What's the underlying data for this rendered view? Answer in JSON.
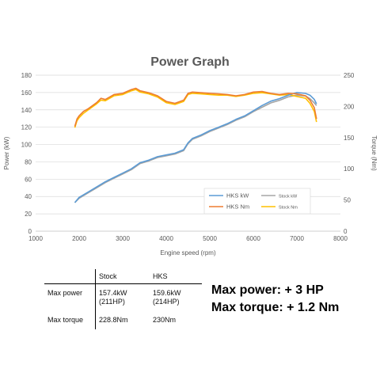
{
  "chart_data": {
    "type": "line",
    "title": "Power Graph",
    "xlabel": "Engine speed (rpm)",
    "ylabel_left": "Power (kW)",
    "ylabel_right": "Torque (Nm)",
    "xlim": [
      1000,
      8000
    ],
    "ylim_left": [
      0,
      180
    ],
    "ylim_right": [
      0,
      250
    ],
    "x_ticks": [
      "1000",
      "2000",
      "3000",
      "4000",
      "5000",
      "6000",
      "7000",
      "8000"
    ],
    "y_left_ticks": [
      "0",
      "20",
      "40",
      "60",
      "80",
      "100",
      "120",
      "140",
      "160",
      "180"
    ],
    "y_right_ticks": [
      "0",
      "50",
      "100",
      "150",
      "200",
      "250"
    ],
    "grid": "horizontal",
    "legend": [
      {
        "name": "HKS kW",
        "color": "#5b9bd5"
      },
      {
        "name": "Stock kW",
        "color": "#a5a5a5"
      },
      {
        "name": "HKS Nm",
        "color": "#ed7d31"
      },
      {
        "name": "Stock Nm",
        "color": "#ffc000"
      }
    ],
    "legend_position": "lower-right",
    "series": [
      {
        "name": "HKS kW",
        "axis": "left",
        "color": "#5b9bd5",
        "x": [
          1900,
          2000,
          2200,
          2400,
          2600,
          2800,
          3000,
          3200,
          3400,
          3600,
          3800,
          4000,
          4200,
          4400,
          4500,
          4600,
          4800,
          5000,
          5200,
          5400,
          5600,
          5800,
          6000,
          6200,
          6400,
          6600,
          6800,
          7000,
          7200,
          7300,
          7400,
          7450
        ],
        "y": [
          33,
          39,
          45,
          51,
          57,
          62,
          67,
          72,
          79,
          82,
          86,
          88,
          90,
          94,
          102,
          107,
          111,
          116,
          120,
          124,
          129,
          133,
          139,
          145,
          150,
          153,
          157,
          160,
          159,
          157,
          152,
          147
        ]
      },
      {
        "name": "Stock kW",
        "axis": "left",
        "color": "#a5a5a5",
        "x": [
          1900,
          2000,
          2200,
          2400,
          2600,
          2800,
          3000,
          3200,
          3400,
          3600,
          3800,
          4000,
          4200,
          4400,
          4500,
          4600,
          4800,
          5000,
          5200,
          5400,
          5600,
          5800,
          6000,
          6200,
          6400,
          6600,
          6800,
          7000,
          7200,
          7300,
          7400,
          7450
        ],
        "y": [
          33,
          38,
          44,
          50,
          56,
          61,
          66,
          71,
          78,
          81,
          85,
          87,
          89,
          93,
          101,
          106,
          110,
          115,
          119,
          123,
          128,
          132,
          138,
          143,
          148,
          151,
          155,
          157,
          156,
          153,
          148,
          145
        ]
      },
      {
        "name": "HKS Nm",
        "axis": "right",
        "color": "#ed7d31",
        "x": [
          1900,
          1950,
          2000,
          2100,
          2200,
          2400,
          2500,
          2600,
          2800,
          3000,
          3200,
          3300,
          3400,
          3600,
          3800,
          4000,
          4200,
          4400,
          4500,
          4600,
          4800,
          5000,
          5200,
          5400,
          5600,
          5800,
          6000,
          6200,
          6400,
          6600,
          6800,
          7000,
          7200,
          7300,
          7400,
          7450
        ],
        "y": [
          168,
          180,
          185,
          192,
          196,
          206,
          213,
          211,
          219,
          221,
          227,
          229,
          225,
          222,
          217,
          208,
          205,
          210,
          221,
          223,
          222,
          221,
          220,
          219,
          217,
          219,
          223,
          224,
          221,
          219,
          221,
          220,
          217,
          210,
          198,
          180
        ]
      },
      {
        "name": "Stock Nm",
        "axis": "right",
        "color": "#ffc000",
        "x": [
          1900,
          1950,
          2000,
          2100,
          2200,
          2400,
          2500,
          2600,
          2800,
          3000,
          3200,
          3300,
          3400,
          3600,
          3800,
          4000,
          4200,
          4400,
          4500,
          4600,
          4800,
          5000,
          5200,
          5400,
          5600,
          5800,
          6000,
          6200,
          6400,
          6600,
          6800,
          7000,
          7200,
          7300,
          7400,
          7450
        ],
        "y": [
          166,
          177,
          182,
          189,
          194,
          204,
          210,
          209,
          217,
          219,
          225,
          227,
          223,
          220,
          215,
          206,
          203,
          208,
          219,
          221,
          220,
          219,
          218,
          218,
          216,
          218,
          221,
          222,
          220,
          218,
          219,
          216,
          213,
          205,
          192,
          175
        ]
      }
    ]
  },
  "table": {
    "headers": [
      "",
      "Stock",
      "HKS"
    ],
    "rows": [
      {
        "label": "Max power",
        "stock": "157.4kW (211HP)",
        "hks": "159.6kW (214HP)"
      },
      {
        "label": "Max torque",
        "stock": "228.8Nm",
        "hks": "230Nm"
      }
    ]
  },
  "summary": {
    "power": "Max power: + 3 HP",
    "torque": "Max torque: + 1.2 Nm"
  }
}
